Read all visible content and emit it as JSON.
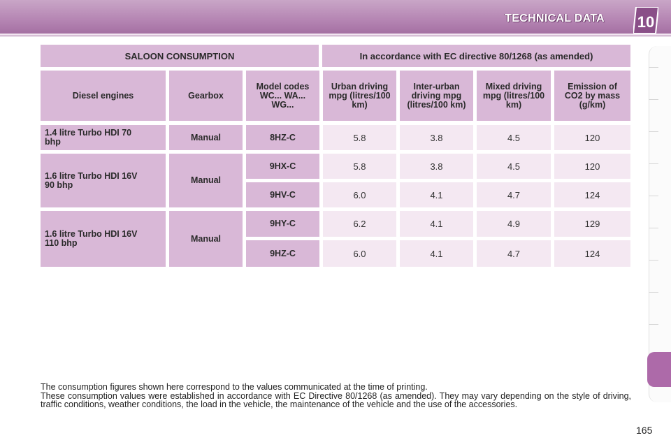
{
  "header": {
    "title": "TECHNICAL DATA",
    "chapter": "10"
  },
  "table": {
    "heading_left": "SALOON CONSUMPTION",
    "heading_right": "In accordance with EC directive 80/1268 (as amended)",
    "columns": [
      "Diesel engines",
      "Gearbox",
      "Model codes WC... WA... WG...",
      "Urban driving mpg (litres/100 km)",
      "Inter-urban driving mpg (litres/100 km)",
      "Mixed driving mpg (litres/100 km)",
      "Emission of CO2 by mass (g/km)"
    ],
    "engines": [
      {
        "name": "1.4 litre Turbo HDI 70 bhp",
        "gearbox": "Manual"
      },
      {
        "name": "1.6 litre Turbo HDI 16V 90 bhp",
        "gearbox": "Manual"
      },
      {
        "name": "1.6 litre Turbo HDI 16V 110 bhp",
        "gearbox": "Manual"
      }
    ],
    "rows": [
      {
        "code": "8HZ-C",
        "urban": "5.8",
        "inter_urban": "3.8",
        "mixed": "4.5",
        "co2": "120"
      },
      {
        "code": "9HX-C",
        "urban": "5.8",
        "inter_urban": "3.8",
        "mixed": "4.5",
        "co2": "120"
      },
      {
        "code": "9HV-C",
        "urban": "6.0",
        "inter_urban": "4.1",
        "mixed": "4.7",
        "co2": "124"
      },
      {
        "code": "9HY-C",
        "urban": "6.2",
        "inter_urban": "4.1",
        "mixed": "4.9",
        "co2": "129"
      },
      {
        "code": "9HZ-C",
        "urban": "6.0",
        "inter_urban": "4.1",
        "mixed": "4.7",
        "co2": "124"
      }
    ]
  },
  "footnote": {
    "line1": "The consumption figures shown here correspond to the values communicated at the time of printing.",
    "line2": "These consumption values were established in accordance with EC Directive 80/1268 (as amended). They may vary depending on the style of driving, traffic conditions, weather conditions, the load in the vehicle, the maintenance of the vehicle and the use of the accessories."
  },
  "page_number": "165",
  "colors": {
    "header": "#b585b3",
    "cell_dark": "#d9b8d7",
    "cell_light": "#f4e8f2",
    "tab": "#ad6aa9"
  }
}
